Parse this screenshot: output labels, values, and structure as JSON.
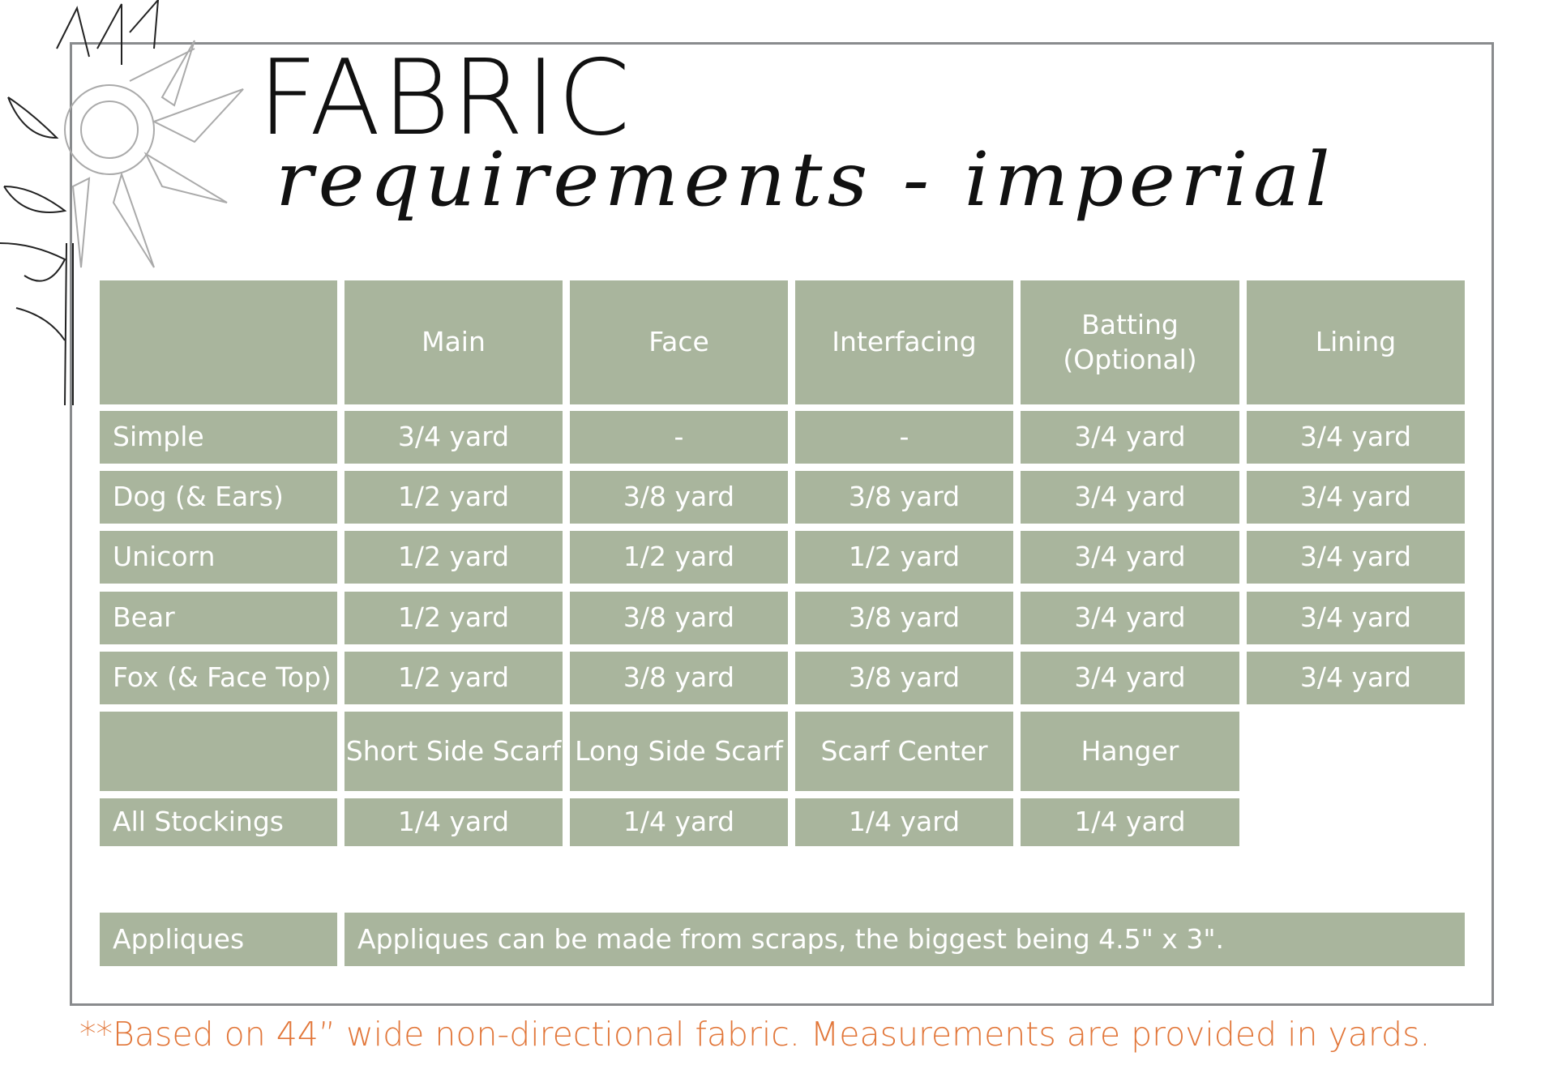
{
  "title": "FABRIC",
  "subtitle": "requirements - imperial",
  "colors": {
    "cell": "#a9b59d",
    "cell_text": "#ffffff",
    "frame": "#898b8d",
    "footnote": "#e2773a"
  },
  "table": {
    "headers": [
      "",
      "Main",
      "Face",
      "Interfacing",
      "Batting (Optional)",
      "Lining"
    ],
    "rows": [
      {
        "label": "Simple",
        "values": [
          "3/4 yard",
          "-",
          "-",
          "3/4 yard",
          "3/4 yard"
        ]
      },
      {
        "label": "Dog (& Ears)",
        "values": [
          "1/2 yard",
          "3/8 yard",
          "3/8 yard",
          "3/4 yard",
          "3/4 yard"
        ]
      },
      {
        "label": "Unicorn",
        "values": [
          "1/2 yard",
          "1/2 yard",
          "1/2 yard",
          "3/4 yard",
          "3/4 yard"
        ]
      },
      {
        "label": "Bear",
        "values": [
          "1/2 yard",
          "3/8 yard",
          "3/8 yard",
          "3/4 yard",
          "3/4 yard"
        ]
      },
      {
        "label": "Fox (& Face Top)",
        "values": [
          "1/2 yard",
          "3/8 yard",
          "3/8 yard",
          "3/4 yard",
          "3/4 yard"
        ]
      }
    ],
    "headers2": [
      "",
      "Short Side Scarf",
      "Long Side Scarf",
      "Scarf Center",
      "Hanger"
    ],
    "rows2": [
      {
        "label": "All Stockings",
        "values": [
          "1/4 yard",
          "1/4 yard",
          "1/4 yard",
          "1/4 yard"
        ]
      }
    ],
    "appliques": {
      "label": "Appliques",
      "text": "Appliques can be made from scraps, the biggest being 4.5\" x 3\"."
    }
  },
  "footnote": "**Based on 44” wide non-directional fabric. Measurements are provided in yards."
}
